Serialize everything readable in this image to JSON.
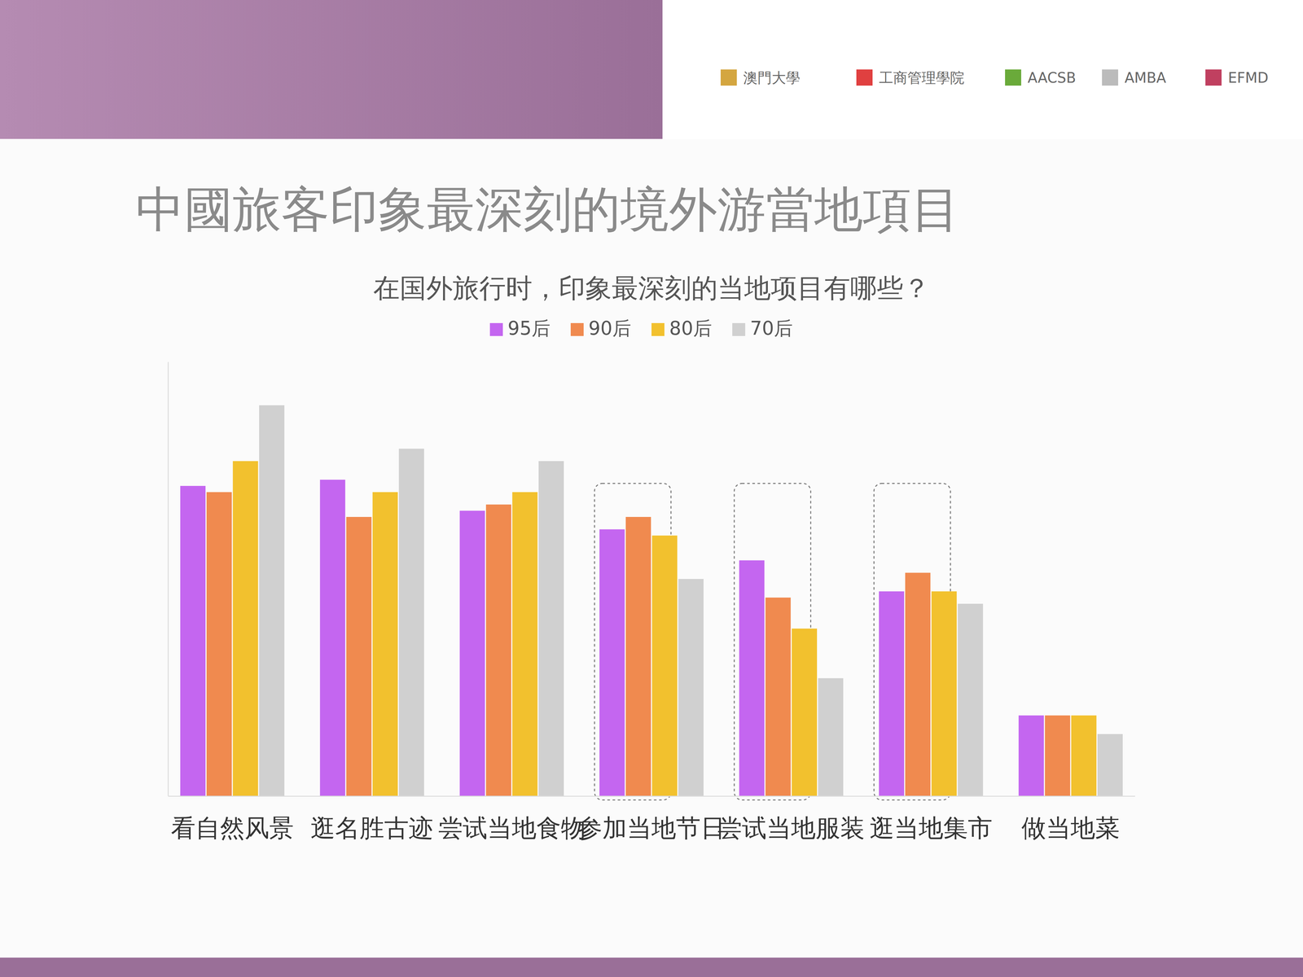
{
  "chart_data": {
    "type": "bar",
    "title": "中國旅客印象最深刻的境外游當地項目",
    "subtitle": "在国外旅行时，印象最深刻的当地项目有哪些？",
    "annotations": [
      "澳門大學",
      "工商管理學院",
      "AACSB",
      "AMBA",
      "EFMD"
    ],
    "categories": [
      "看自然风景",
      "逛名胜古迹",
      "尝试当地食物",
      "参加当地节日",
      "尝试当地服装",
      "逛当地集市",
      "做当地菜"
    ],
    "series": [
      {
        "name": "95后",
        "color": "#c466f0",
        "values": [
          50,
          51,
          46,
          43,
          38,
          33,
          13
        ]
      },
      {
        "name": "90后",
        "color": "#f08a4f",
        "values": [
          49,
          45,
          47,
          45,
          32,
          36,
          13
        ]
      },
      {
        "name": "80后",
        "color": "#f2c12e",
        "values": [
          54,
          49,
          49,
          42,
          27,
          33,
          13
        ]
      },
      {
        "name": "70后",
        "color": "#d0d0d0",
        "values": [
          63,
          56,
          54,
          35,
          19,
          31,
          10
        ]
      }
    ],
    "ylim": [
      0,
      70
    ],
    "legend": "top",
    "tick_labels": "x",
    "grid": false
  }
}
